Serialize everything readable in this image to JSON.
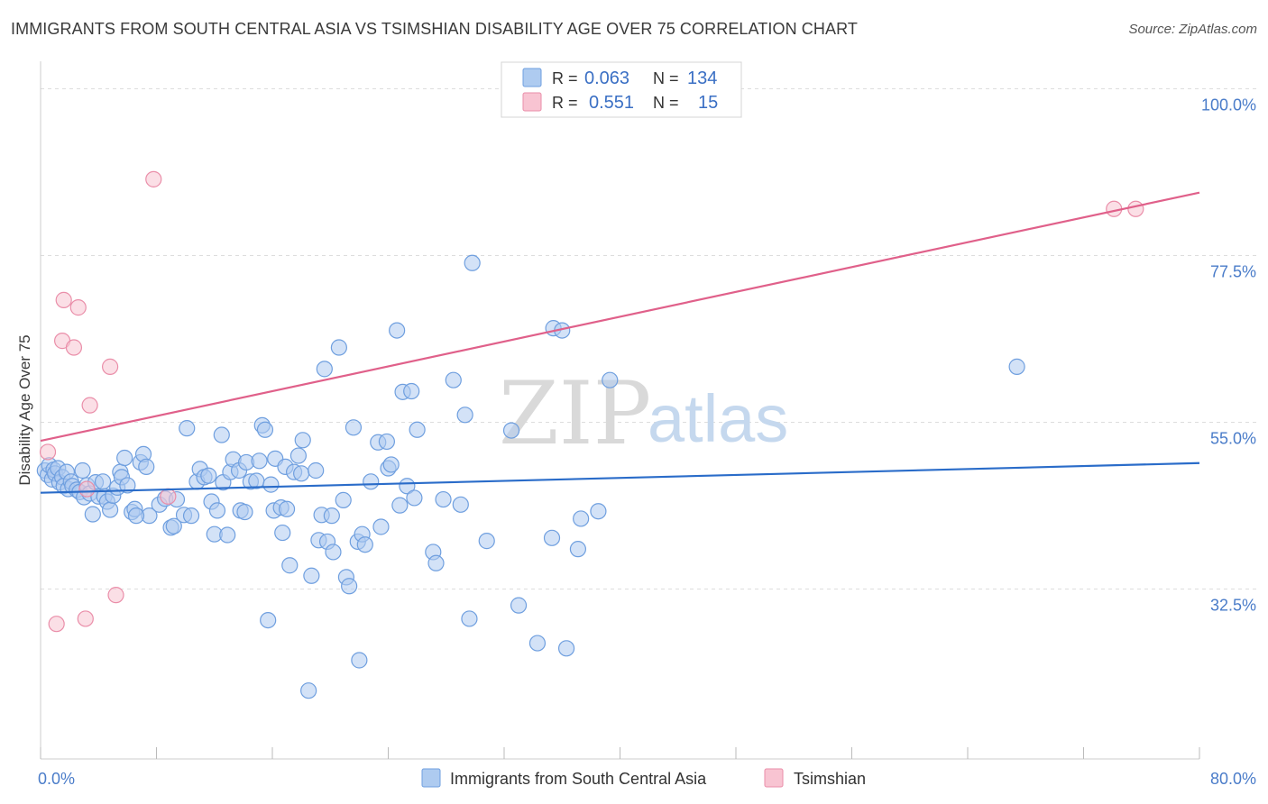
{
  "title": "IMMIGRANTS FROM SOUTH CENTRAL ASIA VS TSIMSHIAN DISABILITY AGE OVER 75 CORRELATION CHART",
  "source": "Source: ZipAtlas.com",
  "watermark": {
    "zip": "ZIP",
    "atlas": "atlas"
  },
  "colors": {
    "blue_fill": "#aecbf0",
    "blue_stroke": "#6f9fdf",
    "blue_line": "#2a6cc9",
    "pink_fill": "#f8c4d2",
    "pink_stroke": "#ea8ea9",
    "pink_line": "#e0608a",
    "tick_text": "#4a7cc9",
    "grid": "#dddddd"
  },
  "legend": {
    "rows": [
      {
        "r_label": "R =",
        "r_value": "0.063",
        "n_label": "N =",
        "n_value": "134"
      },
      {
        "r_label": "R =",
        "r_value": "0.551",
        "n_label": "N =",
        "n_value": "15"
      }
    ]
  },
  "bottom_legend": {
    "series1": "Immigrants from South Central Asia",
    "series2": "Tsimshian"
  },
  "chart_data": {
    "type": "scatter",
    "title": "IMMIGRANTS FROM SOUTH CENTRAL ASIA VS TSIMSHIAN DISABILITY AGE OVER 75 CORRELATION CHART",
    "xlabel": "",
    "ylabel": "Disability Age Over 75",
    "xlim": [
      0,
      80
    ],
    "ylim": [
      12.5,
      102.5
    ],
    "x_tick_labels": [
      "0.0%",
      "80.0%"
    ],
    "y_ticks": [
      100,
      77.5,
      55,
      32.5
    ],
    "y_tick_labels": [
      "100.0%",
      "77.5%",
      "55.0%",
      "32.5%"
    ],
    "grid": true,
    "series": [
      {
        "name": "Immigrants from South Central Asia",
        "R": 0.063,
        "N": 134,
        "trend": {
          "x": [
            0,
            80
          ],
          "y": [
            45.5,
            49.5
          ]
        },
        "points": [
          [
            0.3,
            48.5
          ],
          [
            0.5,
            47.9
          ],
          [
            0.6,
            49.2
          ],
          [
            0.8,
            47.3
          ],
          [
            0.9,
            48.6
          ],
          [
            1.0,
            48.1
          ],
          [
            1.2,
            48.8
          ],
          [
            1.3,
            46.9
          ],
          [
            1.5,
            47.6
          ],
          [
            1.6,
            46.4
          ],
          [
            1.8,
            48.3
          ],
          [
            1.9,
            46.0
          ],
          [
            2.1,
            47.0
          ],
          [
            2.2,
            46.4
          ],
          [
            2.5,
            45.9
          ],
          [
            2.7,
            45.6
          ],
          [
            2.9,
            48.5
          ],
          [
            3.0,
            44.9
          ],
          [
            3.2,
            46.5
          ],
          [
            3.4,
            45.4
          ],
          [
            3.6,
            42.6
          ],
          [
            3.8,
            46.9
          ],
          [
            4.0,
            45.0
          ],
          [
            4.3,
            47.0
          ],
          [
            4.4,
            45.0
          ],
          [
            4.6,
            44.3
          ],
          [
            4.8,
            43.2
          ],
          [
            5.0,
            45.1
          ],
          [
            5.3,
            46.2
          ],
          [
            5.5,
            48.3
          ],
          [
            5.6,
            47.6
          ],
          [
            5.8,
            50.2
          ],
          [
            6.0,
            46.5
          ],
          [
            6.3,
            42.9
          ],
          [
            6.5,
            43.3
          ],
          [
            6.9,
            49.6
          ],
          [
            7.1,
            50.7
          ],
          [
            7.3,
            49.0
          ],
          [
            7.5,
            42.4
          ],
          [
            8.2,
            43.9
          ],
          [
            8.6,
            44.7
          ],
          [
            9.0,
            40.8
          ],
          [
            9.2,
            41.0
          ],
          [
            9.4,
            44.6
          ],
          [
            9.9,
            42.5
          ],
          [
            10.1,
            54.2
          ],
          [
            10.4,
            42.4
          ],
          [
            10.8,
            47.0
          ],
          [
            11.0,
            48.7
          ],
          [
            11.3,
            47.6
          ],
          [
            11.6,
            47.8
          ],
          [
            11.8,
            44.3
          ],
          [
            12.0,
            39.9
          ],
          [
            12.2,
            43.1
          ],
          [
            12.5,
            53.3
          ],
          [
            12.6,
            46.9
          ],
          [
            13.1,
            48.3
          ],
          [
            13.3,
            50.0
          ],
          [
            13.7,
            48.5
          ],
          [
            13.8,
            43.1
          ],
          [
            14.1,
            42.9
          ],
          [
            14.2,
            49.6
          ],
          [
            14.5,
            47.0
          ],
          [
            14.9,
            47.1
          ],
          [
            15.1,
            49.8
          ],
          [
            15.3,
            54.6
          ],
          [
            15.5,
            54.0
          ],
          [
            15.7,
            28.3
          ],
          [
            15.9,
            46.6
          ],
          [
            16.1,
            43.1
          ],
          [
            16.2,
            50.1
          ],
          [
            16.6,
            43.5
          ],
          [
            16.7,
            40.1
          ],
          [
            16.9,
            49.0
          ],
          [
            17.0,
            43.3
          ],
          [
            17.2,
            35.7
          ],
          [
            17.5,
            48.3
          ],
          [
            17.8,
            50.5
          ],
          [
            18.0,
            48.1
          ],
          [
            18.1,
            52.6
          ],
          [
            18.5,
            18.8
          ],
          [
            18.7,
            34.3
          ],
          [
            19.0,
            48.5
          ],
          [
            19.2,
            39.1
          ],
          [
            19.4,
            42.5
          ],
          [
            19.6,
            62.2
          ],
          [
            19.8,
            38.9
          ],
          [
            20.1,
            42.4
          ],
          [
            20.2,
            37.5
          ],
          [
            20.6,
            65.1
          ],
          [
            20.9,
            44.5
          ],
          [
            21.1,
            34.1
          ],
          [
            21.3,
            32.9
          ],
          [
            21.6,
            54.3
          ],
          [
            21.9,
            38.9
          ],
          [
            22.0,
            22.9
          ],
          [
            22.2,
            39.9
          ],
          [
            22.4,
            38.5
          ],
          [
            22.8,
            47.0
          ],
          [
            23.3,
            52.3
          ],
          [
            23.5,
            40.9
          ],
          [
            23.9,
            52.4
          ],
          [
            24.0,
            48.8
          ],
          [
            24.2,
            49.3
          ],
          [
            24.6,
            67.4
          ],
          [
            24.8,
            43.8
          ],
          [
            25.0,
            59.1
          ],
          [
            25.3,
            46.4
          ],
          [
            25.6,
            59.2
          ],
          [
            25.8,
            44.8
          ],
          [
            26.0,
            54.0
          ],
          [
            27.1,
            37.5
          ],
          [
            27.3,
            36.0
          ],
          [
            27.8,
            44.6
          ],
          [
            28.5,
            60.7
          ],
          [
            29.0,
            43.9
          ],
          [
            29.3,
            56.0
          ],
          [
            29.6,
            28.5
          ],
          [
            29.8,
            76.5
          ],
          [
            30.8,
            39.0
          ],
          [
            32.5,
            53.9
          ],
          [
            33.0,
            30.3
          ],
          [
            34.3,
            25.2
          ],
          [
            35.3,
            39.4
          ],
          [
            35.4,
            67.7
          ],
          [
            36.0,
            67.4
          ],
          [
            36.3,
            24.5
          ],
          [
            37.1,
            37.9
          ],
          [
            37.3,
            42.0
          ],
          [
            38.5,
            43.0
          ],
          [
            39.3,
            60.7
          ],
          [
            67.4,
            62.5
          ],
          [
            6.6,
            42.4
          ],
          [
            12.9,
            39.8
          ]
        ]
      },
      {
        "name": "Tsimshian",
        "R": 0.551,
        "N": 15,
        "trend": {
          "x": [
            0,
            80
          ],
          "y": [
            52.5,
            86.0
          ]
        },
        "points": [
          [
            0.5,
            51.0
          ],
          [
            1.1,
            27.8
          ],
          [
            1.5,
            66.0
          ],
          [
            1.6,
            71.5
          ],
          [
            2.3,
            65.1
          ],
          [
            2.6,
            70.5
          ],
          [
            3.1,
            28.5
          ],
          [
            3.2,
            46.0
          ],
          [
            3.4,
            57.3
          ],
          [
            4.8,
            62.5
          ],
          [
            5.2,
            31.7
          ],
          [
            7.8,
            87.8
          ],
          [
            8.8,
            45.0
          ],
          [
            74.1,
            83.8
          ],
          [
            75.6,
            83.8
          ]
        ]
      }
    ]
  }
}
